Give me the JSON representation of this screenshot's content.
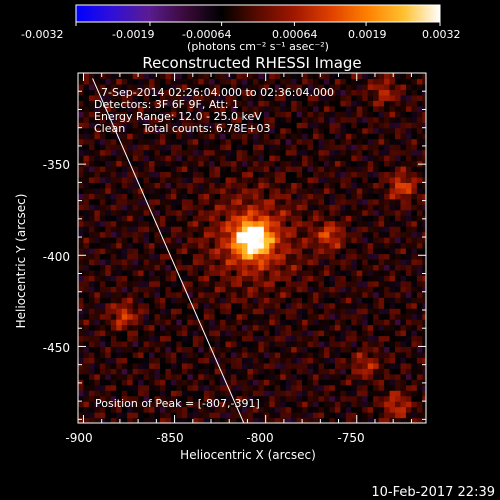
{
  "colorbar": {
    "tick_labels": [
      "-0.0032",
      "-0.0019",
      "-0.00064",
      "0.00064",
      "0.0019",
      "0.0032"
    ],
    "unit_label": "(photons cm⁻² s⁻¹ asec⁻²)",
    "range": [
      -0.0032,
      0.0032
    ],
    "colors": [
      "#0000ff",
      "#3010d8",
      "#5a1c90",
      "#3a0a3a",
      "#000000",
      "#5a0a00",
      "#a01800",
      "#e04000",
      "#ff8000",
      "#ffc030",
      "#ffffff"
    ]
  },
  "chart_data": {
    "type": "heatmap",
    "title": "Reconstructed RHESSI Image",
    "xlabel": "Heliocentric X (arcsec)",
    "ylabel": "Heliocentric Y (arcsec)",
    "xlim": [
      -903,
      -712
    ],
    "ylim": [
      -492,
      -300
    ],
    "xticks": [
      -900,
      -850,
      -800,
      -750
    ],
    "yticks": [
      -350,
      -400,
      -450
    ],
    "limb_line": {
      "x1": -895,
      "y1": -303,
      "x2": -812,
      "y2": -492
    },
    "peak": {
      "x": -807,
      "y": -391
    },
    "secondary_sources": [
      {
        "x": -765,
        "y": -389,
        "amp": 0.42
      },
      {
        "x": -725,
        "y": -362,
        "amp": 0.45
      },
      {
        "x": -878,
        "y": -433,
        "amp": 0.4
      },
      {
        "x": -745,
        "y": -460,
        "amp": 0.32
      },
      {
        "x": -728,
        "y": -482,
        "amp": 0.38
      },
      {
        "x": -735,
        "y": -310,
        "amp": 0.32
      }
    ],
    "annotations": [
      "7-Sep-2014 02:26:04.000 to 02:36:04.000",
      "Detectors: 3F 6F 9F, Att: 1",
      "Energy Range: 12.0 - 25.0 keV",
      "Clean     Total counts: 6.78E+03",
      "Position of Peak = [-807,-391]"
    ]
  },
  "footer_timestamp": "10-Feb-2017 22:39"
}
